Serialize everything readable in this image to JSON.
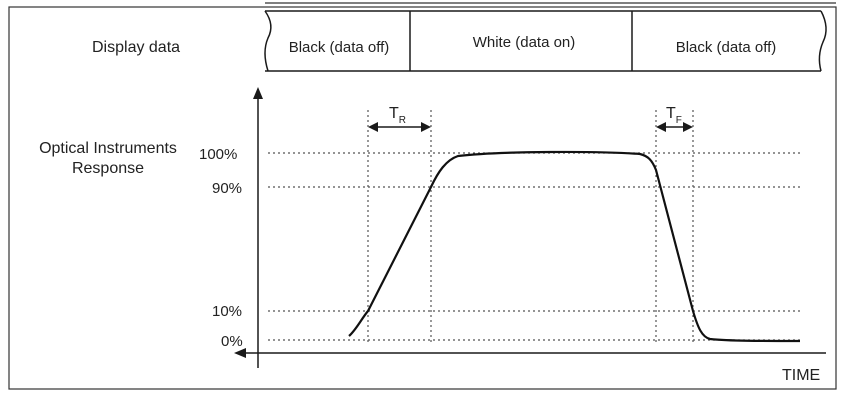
{
  "display_data": {
    "label": "Display data",
    "segments": [
      "Black (data off)",
      "White (data on)",
      "Black (data off)"
    ]
  },
  "axes": {
    "y_label_line1": "Optical Instruments",
    "y_label_line2": "Response",
    "x_label": "TIME"
  },
  "levels": [
    "100%",
    "90%",
    "10%",
    "0%"
  ],
  "markers": {
    "rise": {
      "main": "T",
      "sub": "R"
    },
    "fall": {
      "main": "T",
      "sub": "F"
    }
  },
  "colors": {
    "line": "#111111",
    "grid": "#555555"
  }
}
